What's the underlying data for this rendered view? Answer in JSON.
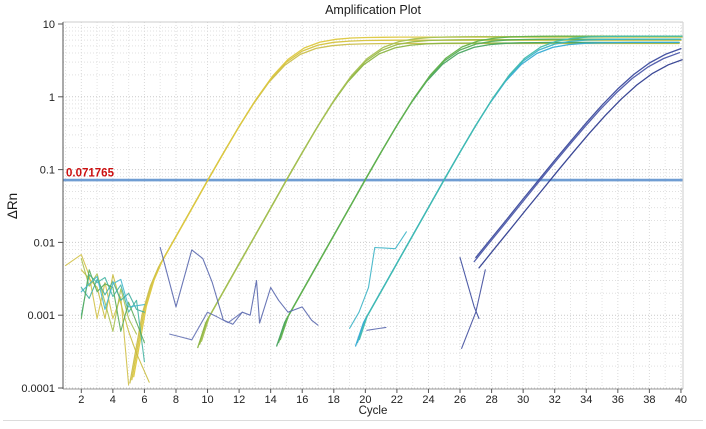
{
  "chart_data": {
    "type": "line",
    "title": "Amplification Plot",
    "xlabel": "Cycle",
    "ylabel": "ΔRn",
    "x_range": [
      1,
      40
    ],
    "x_ticks": [
      2,
      4,
      6,
      8,
      10,
      12,
      14,
      16,
      18,
      20,
      22,
      24,
      26,
      28,
      30,
      32,
      34,
      36,
      38,
      40
    ],
    "y_scale": "log",
    "y_range": [
      0.0001,
      10
    ],
    "y_ticks": [
      10,
      1,
      0.1,
      0.01,
      0.001,
      0.0001
    ],
    "y_tick_labels": [
      "10",
      "1",
      "0.1",
      "0.01",
      "0.001",
      "0.0001"
    ],
    "grid": {
      "minor_log_rows": true,
      "vertical_per_cycle": true,
      "style": "dotted"
    },
    "legend": "none",
    "threshold": {
      "value": 0.071765,
      "label": "0.071765"
    },
    "groups": [
      {
        "name": "amplification-group-1",
        "ct_approx": 10,
        "plateau_approx": 6.0,
        "replicates": [
          {
            "color": "#d5c33e",
            "scale": 1.0,
            "dx": 0
          },
          {
            "color": "#cbbf4c",
            "scale": 0.9,
            "dx": -0.12
          },
          {
            "color": "#ddc83f",
            "scale": 1.1,
            "dx": 0.12
          }
        ],
        "points": [
          [
            5.2,
            0.00013
          ],
          [
            6,
            0.0012
          ],
          [
            6.5,
            0.0028
          ],
          [
            7,
            0.005
          ],
          [
            8,
            0.0121
          ],
          [
            9,
            0.0293
          ],
          [
            10,
            0.0708
          ],
          [
            11,
            0.168
          ],
          [
            12,
            0.393
          ],
          [
            13,
            0.87
          ],
          [
            14,
            1.75
          ],
          [
            15,
            3.0
          ],
          [
            16,
            4.25
          ],
          [
            17,
            5.13
          ],
          [
            18,
            5.6
          ],
          [
            19,
            5.83
          ],
          [
            20,
            5.93
          ],
          [
            21,
            5.97
          ],
          [
            22,
            6.0
          ],
          [
            26,
            6.0
          ],
          [
            30,
            6.0
          ],
          [
            35,
            6.0
          ],
          [
            40,
            6.0
          ]
        ]
      },
      {
        "name": "amplification-group-2",
        "ct_approx": 15,
        "plateau_approx": 6.1,
        "replicates": [
          {
            "color": "#9aba4a",
            "scale": 1.0,
            "dx": 0
          },
          {
            "color": "#8cb545",
            "scale": 0.9,
            "dx": -0.12
          },
          {
            "color": "#a8c153",
            "scale": 1.1,
            "dx": 0.12
          }
        ],
        "points": [
          [
            9.5,
            0.0004
          ],
          [
            10,
            0.00087
          ],
          [
            11,
            0.0021
          ],
          [
            12,
            0.0051
          ],
          [
            13,
            0.0123
          ],
          [
            14,
            0.0298
          ],
          [
            15,
            0.072
          ],
          [
            16,
            0.171
          ],
          [
            17,
            0.4
          ],
          [
            18,
            0.885
          ],
          [
            19,
            1.78
          ],
          [
            20,
            3.05
          ],
          [
            21,
            4.32
          ],
          [
            22,
            5.21
          ],
          [
            23,
            5.7
          ],
          [
            24,
            5.93
          ],
          [
            25,
            6.03
          ],
          [
            26,
            6.07
          ],
          [
            27,
            6.1
          ],
          [
            31,
            6.1
          ],
          [
            35,
            6.1
          ],
          [
            40,
            6.1
          ]
        ]
      },
      {
        "name": "amplification-group-3",
        "ct_approx": 20,
        "plateau_approx": 6.2,
        "replicates": [
          {
            "color": "#57ac57",
            "scale": 1.0,
            "dx": 0
          },
          {
            "color": "#4aa562",
            "scale": 0.9,
            "dx": -0.12
          },
          {
            "color": "#63b24c",
            "scale": 1.1,
            "dx": 0.12
          }
        ],
        "points": [
          [
            14.5,
            0.00042
          ],
          [
            15,
            0.00088
          ],
          [
            16,
            0.00213
          ],
          [
            17,
            0.00517
          ],
          [
            18,
            0.0125
          ],
          [
            19,
            0.0303
          ],
          [
            20,
            0.0732
          ],
          [
            21,
            0.174
          ],
          [
            22,
            0.406
          ],
          [
            23,
            0.899
          ],
          [
            24,
            1.81
          ],
          [
            25,
            3.1
          ],
          [
            26,
            4.39
          ],
          [
            27,
            5.3
          ],
          [
            28,
            5.79
          ],
          [
            29,
            6.03
          ],
          [
            30,
            6.13
          ],
          [
            31,
            6.17
          ],
          [
            32,
            6.2
          ],
          [
            36,
            6.2
          ],
          [
            40,
            6.2
          ]
        ]
      },
      {
        "name": "amplification-group-4",
        "ct_approx": 25,
        "plateau_approx": 6.2,
        "replicates": [
          {
            "color": "#3cb4c6",
            "scale": 1.0,
            "dx": 0
          },
          {
            "color": "#36acd4",
            "scale": 0.9,
            "dx": -0.12
          },
          {
            "color": "#42bcae",
            "scale": 1.1,
            "dx": 0.12
          }
        ],
        "points": [
          [
            19.5,
            0.00042
          ],
          [
            20,
            0.00088
          ],
          [
            21,
            0.00213
          ],
          [
            22,
            0.00517
          ],
          [
            23,
            0.0125
          ],
          [
            24,
            0.0303
          ],
          [
            25,
            0.0732
          ],
          [
            26,
            0.174
          ],
          [
            27,
            0.406
          ],
          [
            28,
            0.899
          ],
          [
            29,
            1.81
          ],
          [
            30,
            3.1
          ],
          [
            31,
            4.39
          ],
          [
            32,
            5.3
          ],
          [
            33,
            5.79
          ],
          [
            34,
            6.03
          ],
          [
            35,
            6.13
          ],
          [
            36,
            6.17
          ],
          [
            37,
            6.2
          ],
          [
            40,
            6.2
          ]
        ]
      },
      {
        "name": "amplification-group-5",
        "ct_approx": 31,
        "plateau_approx": 6.0,
        "replicates": [
          {
            "color": "#3b4a9d",
            "scale": 1.0,
            "dx": 0
          },
          {
            "color": "#303e90",
            "scale": 0.72,
            "dx": 0.2
          },
          {
            "color": "#4c59aa",
            "scale": 0.88,
            "dx": -0.1
          }
        ],
        "points": [
          [
            27,
            0.0062
          ],
          [
            28,
            0.0115
          ],
          [
            29,
            0.0212
          ],
          [
            30,
            0.0394
          ],
          [
            31,
            0.0727
          ],
          [
            32,
            0.134
          ],
          [
            33,
            0.244
          ],
          [
            34,
            0.439
          ],
          [
            35,
            0.767
          ],
          [
            36,
            1.285
          ],
          [
            37,
            2.02
          ],
          [
            38,
            2.91
          ],
          [
            39,
            3.82
          ],
          [
            40,
            4.59
          ]
        ]
      }
    ],
    "noise_segments": [
      {
        "color": "#d2c148",
        "points": [
          [
            1,
            0.0048
          ],
          [
            2,
            0.0068
          ],
          [
            2.5,
            0.0035
          ],
          [
            3,
            0.0009
          ],
          [
            3.5,
            0.0028
          ],
          [
            4,
            0.0009
          ],
          [
            4.5,
            0.0018
          ],
          [
            5,
            0.00011
          ]
        ]
      },
      {
        "color": "#c9bd3f",
        "points": [
          [
            2,
            0.0042
          ],
          [
            3,
            0.0024
          ],
          [
            3.5,
            0.0009
          ],
          [
            4,
            0.0036
          ],
          [
            5,
            0.0006
          ],
          [
            5.5,
            0.0003
          ],
          [
            6.3,
            0.00012
          ]
        ]
      },
      {
        "color": "#a9c14f",
        "points": [
          [
            2,
            0.006
          ],
          [
            2.5,
            0.0025
          ],
          [
            3,
            0.0037
          ],
          [
            4,
            0.0006
          ],
          [
            4.5,
            0.0023
          ],
          [
            5,
            0.0009
          ],
          [
            5.5,
            0.00055
          ]
        ]
      },
      {
        "color": "#45b5a3",
        "points": [
          [
            2,
            0.001
          ],
          [
            2.5,
            0.0036
          ],
          [
            3,
            0.0028
          ],
          [
            3.5,
            0.0033
          ],
          [
            4,
            0.0018
          ],
          [
            4.5,
            0.0026
          ],
          [
            5,
            0.0011
          ],
          [
            5.5,
            0.0016
          ],
          [
            6,
            0.00023
          ]
        ]
      },
      {
        "color": "#3fae9e",
        "points": [
          [
            2,
            0.0024
          ],
          [
            2.5,
            0.0017
          ],
          [
            3,
            0.0031
          ],
          [
            3.5,
            0.0019
          ],
          [
            4,
            0.0029
          ],
          [
            4.5,
            0.0016
          ],
          [
            5,
            0.002
          ],
          [
            5.5,
            0.0012
          ],
          [
            6,
            0.0011
          ]
        ]
      },
      {
        "color": "#59ab59",
        "points": [
          [
            2,
            0.0009
          ],
          [
            2.5,
            0.0042
          ],
          [
            3,
            0.0021
          ],
          [
            3.5,
            0.0027
          ],
          [
            4,
            0.0024
          ],
          [
            4.5,
            0.0006
          ],
          [
            5,
            0.0015
          ],
          [
            5.5,
            0.0008
          ],
          [
            6,
            0.00042
          ]
        ]
      },
      {
        "color": "#43b7cd",
        "points": [
          [
            2,
            0.0021
          ],
          [
            3,
            0.0034
          ],
          [
            3.5,
            0.0012
          ],
          [
            4,
            0.0027
          ],
          [
            4.5,
            0.0031
          ],
          [
            5,
            0.0013
          ],
          [
            6,
            0.0014
          ]
        ]
      },
      {
        "color": "#5a68ae",
        "points": [
          [
            7,
            0.0085
          ],
          [
            8,
            0.0013
          ],
          [
            9,
            0.0079
          ],
          [
            9.7,
            0.006
          ],
          [
            10.3,
            0.0028
          ],
          [
            11,
            0.00086
          ],
          [
            11.6,
            0.00075
          ],
          [
            12.2,
            0.0011
          ],
          [
            12.7,
            0.001
          ],
          [
            13.1,
            0.003
          ],
          [
            13.3,
            0.00078
          ],
          [
            14,
            0.0024
          ],
          [
            14.5,
            0.0016
          ],
          [
            15.1,
            0.0011
          ],
          [
            16,
            0.0013
          ],
          [
            16.6,
            0.00085
          ],
          [
            17,
            0.00073
          ]
        ]
      },
      {
        "color": "#6673b5",
        "points": [
          [
            7.6,
            0.00055
          ],
          [
            8.2,
            0.00051
          ],
          [
            9,
            0.00046
          ],
          [
            10,
            0.0011
          ],
          [
            10.6,
            0.00095
          ],
          [
            11.3,
            0.00079
          ],
          [
            12.2,
            0.0011
          ]
        ]
      },
      {
        "color": "#3cb4c6",
        "points": [
          [
            19,
            0.00066
          ],
          [
            19.6,
            0.0011
          ],
          [
            20.2,
            0.0024
          ],
          [
            20.6,
            0.0085
          ],
          [
            21.9,
            0.0082
          ],
          [
            22.6,
            0.014
          ]
        ]
      },
      {
        "color": "#5a68ae",
        "points": [
          [
            20.1,
            0.00062
          ],
          [
            21.3,
            0.00068
          ]
        ]
      },
      {
        "color": "#3b4a9d",
        "points": [
          [
            26,
            0.0062
          ],
          [
            26.9,
            0.0013
          ],
          [
            27.2,
            0.0009
          ]
        ]
      },
      {
        "color": "#434f9f",
        "points": [
          [
            26.1,
            0.00035
          ],
          [
            27,
            0.0011
          ],
          [
            27.6,
            0.0042
          ]
        ]
      }
    ]
  },
  "colors": {
    "threshold_line": "#6f9dd3",
    "threshold_label": "#cc1111",
    "axis_dark": "#555555",
    "axis_light": "#cccccc",
    "grid_minor": "#e3e3e3",
    "grid_major": "#c9c9c9",
    "tick_text": "#222222"
  }
}
